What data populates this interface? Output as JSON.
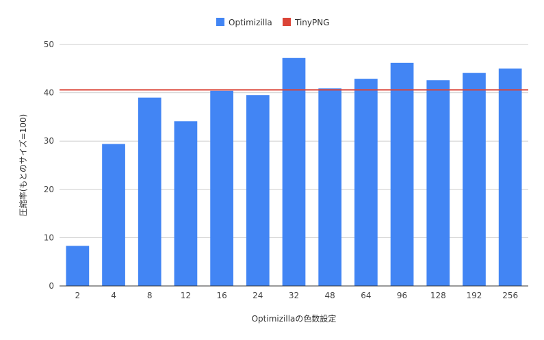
{
  "chart_data": {
    "type": "bar",
    "title": "",
    "xlabel": "Optimizillaの色数設定",
    "ylabel": "圧縮率(もとのサイズ=100)",
    "categories": [
      "2",
      "4",
      "8",
      "12",
      "16",
      "24",
      "32",
      "48",
      "64",
      "96",
      "128",
      "192",
      "256"
    ],
    "series": [
      {
        "name": "Optimizilla",
        "color": "#4285f4",
        "values": [
          8.3,
          29.4,
          39.0,
          34.1,
          40.4,
          39.5,
          47.2,
          40.9,
          42.9,
          46.2,
          42.6,
          44.1,
          45.0
        ]
      }
    ],
    "reference_lines": [
      {
        "name": "TinyPNG",
        "color": "#db4437",
        "value": 40.6
      }
    ],
    "ylim": [
      0,
      50
    ],
    "yticks": [
      "0",
      "10",
      "20",
      "30",
      "40",
      "50"
    ],
    "grid": true,
    "legend_position": "top"
  }
}
